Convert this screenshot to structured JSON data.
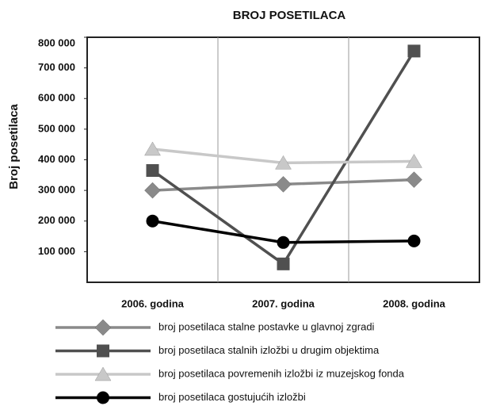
{
  "chart_data": {
    "type": "line",
    "title": "BROJ POSETILACA",
    "y_label": "Broj posetilaca",
    "categories": [
      "2006. godina",
      "2007. godina",
      "2008. godina"
    ],
    "series": [
      {
        "name": "broj posetilaca stalne postavke u glavnoj zgradi",
        "color": "#8a8a8a",
        "marker": "diamond",
        "values": [
          300000,
          320000,
          335000
        ]
      },
      {
        "name": "broj posetilaca stalnih izložbi u drugim objektima",
        "color": "#505050",
        "marker": "square",
        "values": [
          365000,
          60000,
          755000
        ]
      },
      {
        "name": "broj posetilaca povremenih izložbi iz muzejskog fonda",
        "color": "#c8c8c8",
        "marker": "triangle",
        "values": [
          435000,
          390000,
          395000
        ]
      },
      {
        "name": "broj posetilaca gostujućih izložbi",
        "color": "#000000",
        "marker": "circle",
        "values": [
          200000,
          130000,
          135000
        ]
      }
    ],
    "ylim": [
      0,
      800000
    ],
    "yticks": [
      {
        "value": 100000,
        "label": "100 000"
      },
      {
        "value": 200000,
        "label": "200 000"
      },
      {
        "value": 300000,
        "label": "300 000"
      },
      {
        "value": 400000,
        "label": "400 000"
      },
      {
        "value": 500000,
        "label": "500 000"
      },
      {
        "value": 600000,
        "label": "600 000"
      },
      {
        "value": 700000,
        "label": "700 000"
      },
      {
        "value": 800000,
        "label": "800 000"
      }
    ],
    "legend": "bottom"
  }
}
